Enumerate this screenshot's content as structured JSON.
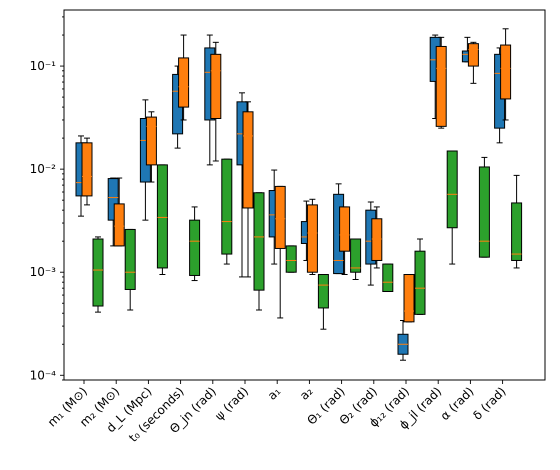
{
  "chart_data": {
    "type": "box",
    "yscale": "log",
    "ylim": [
      9e-05,
      0.35
    ],
    "ytick_values": [
      0.0001,
      0.001,
      0.01,
      0.1
    ],
    "ytick_labels": [
      "10⁻⁴",
      "10⁻³",
      "10⁻²",
      "10⁻¹"
    ],
    "categories": [
      "m₁ (M⊙)",
      "m₂ (M⊙)",
      "d_L (Mpc)",
      "t₀ (seconds)",
      "Θ_jn (rad)",
      "ψ (rad)",
      "a₁",
      "a₂",
      "Θ₁ (rad)",
      "Θ₂ (rad)",
      "ϕ₁₂ (rad)",
      "ϕ_jl (rad)",
      "α (rad)",
      "δ (rad)"
    ],
    "colors": {
      "blue": "#1f77b4",
      "orange": "#ff7f0e",
      "green": "#2ca02c",
      "median": "#ff7f0e"
    },
    "boxes": [
      {
        "cat": 0,
        "series": "blue",
        "q1": 0.0055,
        "median": 0.0074,
        "q3": 0.018,
        "whislo": 0.0035,
        "whishi": 0.021
      },
      {
        "cat": 0,
        "series": "orange",
        "q1": 0.0055,
        "median": 0.0085,
        "q3": 0.018,
        "whislo": 0.0045,
        "whishi": 0.02
      },
      {
        "cat": 0,
        "series": "green",
        "q1": 0.00047,
        "median": 0.00105,
        "q3": 0.0021,
        "whislo": 0.00041,
        "whishi": 0.0022
      },
      {
        "cat": 1,
        "series": "blue",
        "q1": 0.0032,
        "median": 0.0053,
        "q3": 0.0081,
        "whislo": 0.0018,
        "whishi": 0.0082
      },
      {
        "cat": 1,
        "series": "orange",
        "q1": 0.0018,
        "median": 0.0028,
        "q3": 0.0046,
        "whislo": 0.0018,
        "whishi": 0.0082
      },
      {
        "cat": 1,
        "series": "green",
        "q1": 0.00068,
        "median": 0.001,
        "q3": 0.0026,
        "whislo": 0.00043,
        "whishi": 0.0026
      },
      {
        "cat": 2,
        "series": "blue",
        "q1": 0.0075,
        "median": 0.019,
        "q3": 0.031,
        "whislo": 0.0032,
        "whishi": 0.047
      },
      {
        "cat": 2,
        "series": "orange",
        "q1": 0.011,
        "median": 0.026,
        "q3": 0.032,
        "whislo": 0.0075,
        "whishi": 0.036
      },
      {
        "cat": 2,
        "series": "green",
        "q1": 0.0011,
        "median": 0.0034,
        "q3": 0.011,
        "whislo": 0.00095,
        "whishi": 0.011
      },
      {
        "cat": 3,
        "series": "blue",
        "q1": 0.022,
        "median": 0.057,
        "q3": 0.083,
        "whislo": 0.016,
        "whishi": 0.1
      },
      {
        "cat": 3,
        "series": "orange",
        "q1": 0.04,
        "median": 0.063,
        "q3": 0.12,
        "whislo": 0.03,
        "whishi": 0.2
      },
      {
        "cat": 3,
        "series": "green",
        "q1": 0.00093,
        "median": 0.002,
        "q3": 0.0032,
        "whislo": 0.00083,
        "whishi": 0.0043
      },
      {
        "cat": 4,
        "series": "blue",
        "q1": 0.03,
        "median": 0.087,
        "q3": 0.15,
        "whislo": 0.011,
        "whishi": 0.2
      },
      {
        "cat": 4,
        "series": "orange",
        "q1": 0.031,
        "median": 0.09,
        "q3": 0.13,
        "whislo": 0.012,
        "whishi": 0.17
      },
      {
        "cat": 4,
        "series": "green",
        "q1": 0.0015,
        "median": 0.0031,
        "q3": 0.0125,
        "whislo": 0.0012,
        "whishi": 0.0125
      },
      {
        "cat": 5,
        "series": "blue",
        "q1": 0.011,
        "median": 0.022,
        "q3": 0.045,
        "whislo": 0.0009,
        "whishi": 0.055
      },
      {
        "cat": 5,
        "series": "orange",
        "q1": 0.0042,
        "median": 0.021,
        "q3": 0.036,
        "whislo": 0.0009,
        "whishi": 0.045
      },
      {
        "cat": 5,
        "series": "green",
        "q1": 0.00067,
        "median": 0.0022,
        "q3": 0.0059,
        "whislo": 0.00043,
        "whishi": 0.0059
      },
      {
        "cat": 6,
        "series": "blue",
        "q1": 0.0022,
        "median": 0.0036,
        "q3": 0.0062,
        "whislo": 0.0012,
        "whishi": 0.0098
      },
      {
        "cat": 6,
        "series": "orange",
        "q1": 0.0017,
        "median": 0.0033,
        "q3": 0.0068,
        "whislo": 0.00036,
        "whishi": 0.0068
      },
      {
        "cat": 6,
        "series": "green",
        "q1": 0.001,
        "median": 0.0013,
        "q3": 0.0018,
        "whislo": 0.001,
        "whishi": 0.0018
      },
      {
        "cat": 7,
        "series": "blue",
        "q1": 0.0019,
        "median": 0.0022,
        "q3": 0.0031,
        "whislo": 0.0013,
        "whishi": 0.0049
      },
      {
        "cat": 7,
        "series": "orange",
        "q1": 0.001,
        "median": 0.0024,
        "q3": 0.0045,
        "whislo": 0.00095,
        "whishi": 0.0051
      },
      {
        "cat": 7,
        "series": "green",
        "q1": 0.00045,
        "median": 0.00075,
        "q3": 0.00095,
        "whislo": 0.00028,
        "whishi": 0.00095
      },
      {
        "cat": 8,
        "series": "blue",
        "q1": 0.00097,
        "median": 0.0013,
        "q3": 0.0057,
        "whislo": 0.00097,
        "whishi": 0.0072
      },
      {
        "cat": 8,
        "series": "orange",
        "q1": 0.0016,
        "median": 0.0023,
        "q3": 0.0043,
        "whislo": 0.00095,
        "whishi": 0.0043
      },
      {
        "cat": 8,
        "series": "green",
        "q1": 0.001,
        "median": 0.0011,
        "q3": 0.0021,
        "whislo": 0.00085,
        "whishi": 0.0021
      },
      {
        "cat": 9,
        "series": "blue",
        "q1": 0.0012,
        "median": 0.002,
        "q3": 0.004,
        "whislo": 0.00075,
        "whishi": 0.0048
      },
      {
        "cat": 9,
        "series": "orange",
        "q1": 0.0013,
        "median": 0.0021,
        "q3": 0.0033,
        "whislo": 0.0011,
        "whishi": 0.0043
      },
      {
        "cat": 9,
        "series": "green",
        "q1": 0.00065,
        "median": 0.0008,
        "q3": 0.0012,
        "whislo": 0.00065,
        "whishi": 0.0012
      },
      {
        "cat": 10,
        "series": "blue",
        "q1": 0.00016,
        "median": 0.0002,
        "q3": 0.00025,
        "whislo": 0.00014,
        "whishi": 0.00034
      },
      {
        "cat": 10,
        "series": "orange",
        "q1": 0.00033,
        "median": 0.00042,
        "q3": 0.00095,
        "whislo": 0.00033,
        "whishi": 0.00095
      },
      {
        "cat": 10,
        "series": "green",
        "q1": 0.00039,
        "median": 0.0007,
        "q3": 0.0016,
        "whislo": 0.00039,
        "whishi": 0.0021
      },
      {
        "cat": 11,
        "series": "blue",
        "q1": 0.071,
        "median": 0.115,
        "q3": 0.19,
        "whislo": 0.031,
        "whishi": 0.2
      },
      {
        "cat": 11,
        "series": "orange",
        "q1": 0.026,
        "median": 0.095,
        "q3": 0.155,
        "whislo": 0.025,
        "whishi": 0.19
      },
      {
        "cat": 11,
        "series": "green",
        "q1": 0.0027,
        "median": 0.0057,
        "q3": 0.015,
        "whislo": 0.0012,
        "whishi": 0.015
      },
      {
        "cat": 12,
        "series": "blue",
        "q1": 0.11,
        "median": 0.13,
        "q3": 0.14,
        "whislo": 0.11,
        "whishi": 0.19
      },
      {
        "cat": 12,
        "series": "orange",
        "q1": 0.1,
        "median": 0.145,
        "q3": 0.165,
        "whislo": 0.068,
        "whishi": 0.17
      },
      {
        "cat": 12,
        "series": "green",
        "q1": 0.0014,
        "median": 0.002,
        "q3": 0.0105,
        "whislo": 0.0014,
        "whishi": 0.013
      },
      {
        "cat": 13,
        "series": "blue",
        "q1": 0.025,
        "median": 0.085,
        "q3": 0.13,
        "whislo": 0.018,
        "whishi": 0.15
      },
      {
        "cat": 13,
        "series": "orange",
        "q1": 0.048,
        "median": 0.095,
        "q3": 0.16,
        "whislo": 0.03,
        "whishi": 0.23
      },
      {
        "cat": 13,
        "series": "green",
        "q1": 0.0013,
        "median": 0.0015,
        "q3": 0.0047,
        "whislo": 0.0011,
        "whishi": 0.0087
      }
    ]
  }
}
